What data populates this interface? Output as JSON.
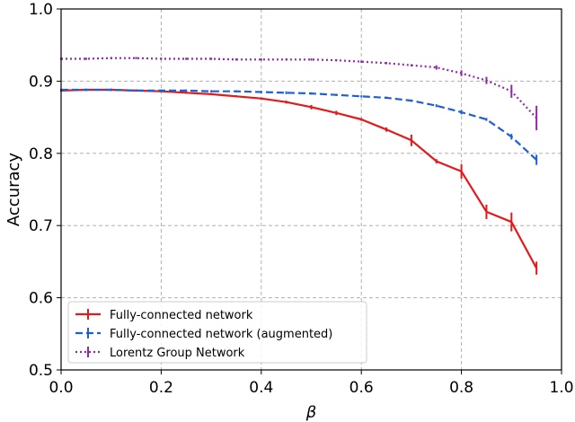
{
  "chart_data": {
    "type": "line",
    "xlabel": "β",
    "ylabel": "Accuracy",
    "xlim": [
      0.0,
      1.0
    ],
    "ylim": [
      0.5,
      1.0
    ],
    "xticks": [
      "0.0",
      "0.2",
      "0.4",
      "0.6",
      "0.8",
      "1.0"
    ],
    "yticks": [
      "0.5",
      "0.6",
      "0.7",
      "0.8",
      "0.9",
      "1.0"
    ],
    "grid": true,
    "legend_position": "bottom-left",
    "series": [
      {
        "name": "Fully-connected network",
        "color": "#e31a1c",
        "linestyle": "solid",
        "x": [
          0.0,
          0.05,
          0.1,
          0.15,
          0.2,
          0.25,
          0.3,
          0.35,
          0.4,
          0.45,
          0.5,
          0.55,
          0.6,
          0.65,
          0.7,
          0.75,
          0.8,
          0.85,
          0.9,
          0.95
        ],
        "y": [
          0.887,
          0.888,
          0.888,
          0.887,
          0.886,
          0.884,
          0.882,
          0.879,
          0.876,
          0.871,
          0.864,
          0.856,
          0.847,
          0.833,
          0.818,
          0.789,
          0.775,
          0.719,
          0.705,
          0.641
        ],
        "err": [
          0.001,
          0.001,
          0.001,
          0.001,
          0.001,
          0.001,
          0.001,
          0.001,
          0.001,
          0.002,
          0.003,
          0.003,
          0.002,
          0.003,
          0.008,
          0.003,
          0.01,
          0.01,
          0.013,
          0.009
        ]
      },
      {
        "name": "Fully-connected network (augmented)",
        "color": "#1f5fd6",
        "linestyle": "dashed",
        "x": [
          0.0,
          0.05,
          0.1,
          0.15,
          0.2,
          0.25,
          0.3,
          0.35,
          0.4,
          0.45,
          0.5,
          0.55,
          0.6,
          0.65,
          0.7,
          0.75,
          0.8,
          0.85,
          0.9,
          0.95
        ],
        "y": [
          0.888,
          0.888,
          0.888,
          0.887,
          0.887,
          0.887,
          0.886,
          0.886,
          0.885,
          0.884,
          0.883,
          0.881,
          0.879,
          0.877,
          0.873,
          0.866,
          0.857,
          0.847,
          0.823,
          0.791
        ],
        "err": [
          0.001,
          0.001,
          0.001,
          0.001,
          0.001,
          0.001,
          0.001,
          0.001,
          0.001,
          0.002,
          0.001,
          0.001,
          0.001,
          0.001,
          0.001,
          0.002,
          0.003,
          0.002,
          0.004,
          0.007
        ]
      },
      {
        "name": "Lorentz Group Network",
        "color": "#8e2aa5",
        "linestyle": "dotted",
        "x": [
          0.0,
          0.05,
          0.1,
          0.15,
          0.2,
          0.25,
          0.3,
          0.35,
          0.4,
          0.45,
          0.5,
          0.55,
          0.6,
          0.65,
          0.7,
          0.75,
          0.8,
          0.85,
          0.9,
          0.95
        ],
        "y": [
          0.931,
          0.931,
          0.932,
          0.932,
          0.931,
          0.931,
          0.931,
          0.93,
          0.93,
          0.93,
          0.93,
          0.929,
          0.927,
          0.925,
          0.922,
          0.919,
          0.911,
          0.901,
          0.886,
          0.849
        ],
        "err": [
          0.001,
          0.001,
          0.001,
          0.001,
          0.001,
          0.001,
          0.001,
          0.001,
          0.001,
          0.001,
          0.001,
          0.001,
          0.001,
          0.001,
          0.001,
          0.003,
          0.004,
          0.005,
          0.009,
          0.017
        ]
      }
    ]
  }
}
